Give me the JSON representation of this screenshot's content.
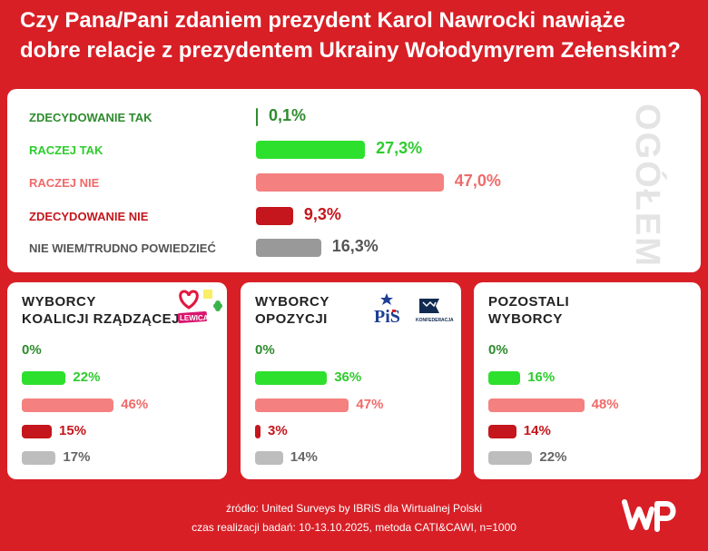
{
  "title": "Czy Pana/Pani zdaniem prezydent Karol Nawrocki nawiąże dobre relacje z prezydentem Ukrainy Wołodymyrem Zełenskim?",
  "side_label": "OGÓŁEM",
  "colors": {
    "background": "#d81f26",
    "zdecydowanie_tak": "#2e8b2e",
    "raczej_tak": "#2ee02e",
    "raczej_nie": "#f48080",
    "zdecydowanie_nie": "#c4161c",
    "nie_wiem": "#999999"
  },
  "chart_data": [
    {
      "type": "bar",
      "categories": [
        "ZDECYDOWANIE TAK",
        "RACZEJ TAK",
        "RACZEJ NIE",
        "ZDECYDOWANIE NIE",
        "NIE WIEM/TRUDNO POWIEDZIEĆ"
      ],
      "values": [
        0.1,
        27.3,
        47.0,
        9.3,
        16.3
      ],
      "value_labels": [
        "0,1%",
        "27,3%",
        "47,0%",
        "9,3%",
        "16,3%"
      ],
      "title": "OGÓŁEM"
    },
    {
      "type": "bar",
      "title": "WYBORCY KOALICJI RZĄDZĄCEJ",
      "title_lines": [
        "WYBORCY",
        "KOALICJI RZĄDZĄCEJ"
      ],
      "logos": [
        "heart-logo",
        "LEWICA",
        "clover-logo"
      ],
      "values": [
        0,
        22,
        46,
        15,
        17
      ],
      "value_labels": [
        "0%",
        "22%",
        "46%",
        "15%",
        "17%"
      ]
    },
    {
      "type": "bar",
      "title": "WYBORCY OPOZYCJI",
      "title_lines": [
        "WYBORCY",
        "OPOZYCJI"
      ],
      "logos": [
        "PiS",
        "KONFEDERACJA"
      ],
      "values": [
        0,
        36,
        47,
        3,
        14
      ],
      "value_labels": [
        "0%",
        "36%",
        "47%",
        "3%",
        "14%"
      ]
    },
    {
      "type": "bar",
      "title": "POZOSTALI WYBORCY",
      "title_lines": [
        "POZOSTALI",
        "WYBORCY"
      ],
      "logos": [],
      "values": [
        0,
        16,
        48,
        14,
        22
      ],
      "value_labels": [
        "0%",
        "16%",
        "48%",
        "14%",
        "22%"
      ]
    }
  ],
  "footer": {
    "source": "źródło: United Surveys by IBRiS dla Wirtualnej Polski",
    "method": "czas realizacji badań: 10-13.10.2025, metoda CATI&CAWI, n=1000"
  }
}
